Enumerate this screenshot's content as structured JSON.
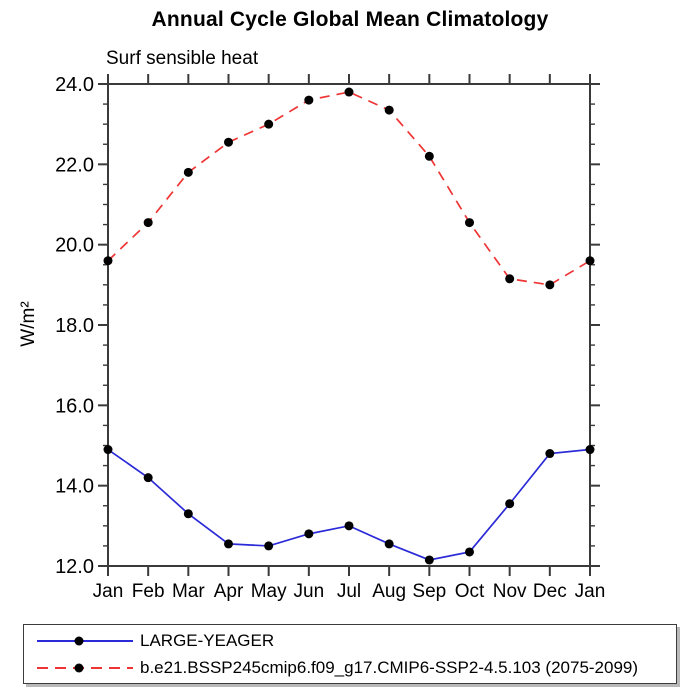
{
  "chart": {
    "title": "Annual Cycle Global Mean Climatology",
    "subtitle": "Surf sensible heat",
    "ylabel": "W/m²"
  },
  "chart_data": {
    "type": "line",
    "title": "Annual Cycle Global Mean Climatology",
    "subtitle": "Surf sensible heat",
    "xlabel": "",
    "ylabel": "W/m²",
    "categories": [
      "Jan",
      "Feb",
      "Mar",
      "Apr",
      "May",
      "Jun",
      "Jul",
      "Aug",
      "Sep",
      "Oct",
      "Nov",
      "Dec",
      "Jan"
    ],
    "ylim": [
      12.0,
      24.0
    ],
    "ytick_major_step": 2.0,
    "ytick_minor_step": 0.5,
    "ytick_labels": [
      "12.0",
      "14.0",
      "16.0",
      "18.0",
      "20.0",
      "22.0",
      "24.0"
    ],
    "grid": false,
    "legend_position": "bottom-left-box",
    "frame_color": "#3a3a3a",
    "marker_color": "#000000",
    "series": [
      {
        "name": "LARGE-YEAGER",
        "color": "#2a2ad8",
        "line_style": "solid",
        "marker": "filled-circle",
        "values": [
          14.9,
          14.2,
          13.3,
          12.55,
          12.5,
          12.8,
          13.0,
          12.55,
          12.15,
          12.35,
          13.55,
          14.8,
          14.9
        ]
      },
      {
        "name": "b.e21.BSSP245cmip6.f09_g17.CMIP6-SSP2-4.5.103 (2075-2099)",
        "color": "#ef3434",
        "line_style": "dashed",
        "marker": "filled-circle",
        "values": [
          19.6,
          20.55,
          21.8,
          22.55,
          23.0,
          23.6,
          23.8,
          23.35,
          22.2,
          20.55,
          19.15,
          19.0,
          19.6
        ]
      }
    ]
  }
}
